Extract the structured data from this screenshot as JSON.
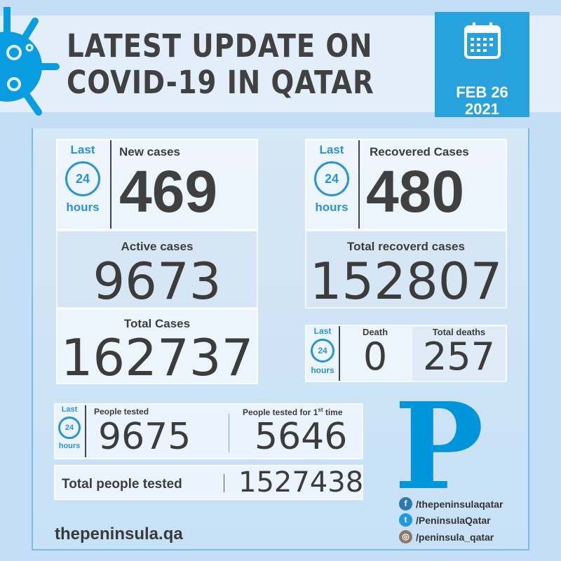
{
  "header": {
    "title_line1": "LATEST UPDATE ON",
    "title_line2": "COVID-19 IN QATAR",
    "date_line1": "FEB 26",
    "date_line2": "2021"
  },
  "last24": {
    "last": "Last",
    "clock": "24",
    "hours": "hours"
  },
  "new_cases": {
    "label": "New cases",
    "value": "469"
  },
  "recovered": {
    "label": "Recovered Cases",
    "value": "480"
  },
  "active": {
    "label": "Active cases",
    "value": "9673"
  },
  "total_recovered": {
    "label": "Total recoverd cases",
    "value": "152807"
  },
  "total_cases": {
    "label": "Total Cases",
    "value": "162737"
  },
  "death": {
    "label": "Death",
    "value": "0"
  },
  "total_deaths": {
    "label": "Total deaths",
    "value": "257"
  },
  "tested": {
    "label": "People tested",
    "value": "9675"
  },
  "first_time": {
    "label_pre": "People tested for 1",
    "label_sup": "st",
    "label_post": " time",
    "value": "5646"
  },
  "total_tested": {
    "label": "Total people tested",
    "value": "1527438"
  },
  "footer": {
    "website": "thepeninsula.qa",
    "logo": "P",
    "facebook": "/thepeninsulaqatar",
    "twitter": "/PeninsulaQatar",
    "instagram": "/peninsula_qatar"
  },
  "colors": {
    "accent": "#27a2dc",
    "background": "#c3def6",
    "logo": "#0095da"
  }
}
